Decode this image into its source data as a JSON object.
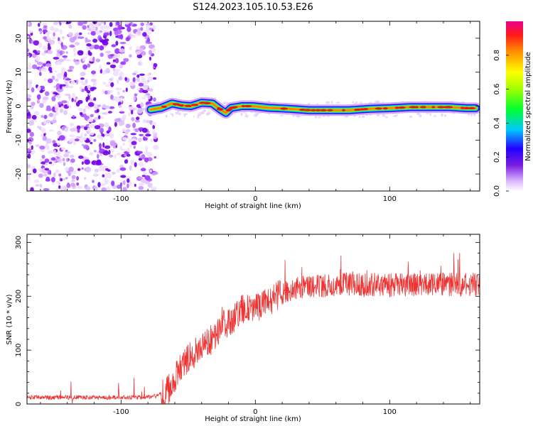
{
  "title": "S124.2023.105.10.53.E26",
  "chart_data": [
    {
      "type": "heatmap",
      "xlabel": "Height of straight line (km)",
      "ylabel": "Frequency (Hz)",
      "xlim": [
        -170,
        167
      ],
      "ylim": [
        -25,
        25
      ],
      "x_ticks": [
        -100,
        0,
        100
      ],
      "y_ticks": [
        -20,
        -10,
        0,
        10,
        20
      ],
      "colorbar": {
        "label": "Normalized spectral amplitude",
        "range": [
          0,
          1
        ],
        "ticks": [
          "0.0",
          "0.2",
          "0.4",
          "0.6",
          "0.8"
        ]
      },
      "noise_region_x": [
        -170,
        -74
      ],
      "signal_track": [
        {
          "x": -78,
          "y": -1.0
        },
        {
          "x": -70,
          "y": -0.5
        },
        {
          "x": -62,
          "y": 0.8
        },
        {
          "x": -55,
          "y": 0.2
        },
        {
          "x": -48,
          "y": 0.0
        },
        {
          "x": -40,
          "y": 1.0
        },
        {
          "x": -32,
          "y": 0.8
        },
        {
          "x": -26,
          "y": -1.0
        },
        {
          "x": -22,
          "y": -2.0
        },
        {
          "x": -18,
          "y": -0.5
        },
        {
          "x": -10,
          "y": 0.0
        },
        {
          "x": -2,
          "y": 0.0
        },
        {
          "x": 10,
          "y": -0.5
        },
        {
          "x": 25,
          "y": -0.8
        },
        {
          "x": 40,
          "y": -1.2
        },
        {
          "x": 55,
          "y": -1.2
        },
        {
          "x": 70,
          "y": -1.2
        },
        {
          "x": 85,
          "y": -0.8
        },
        {
          "x": 100,
          "y": -0.6
        },
        {
          "x": 115,
          "y": -0.3
        },
        {
          "x": 130,
          "y": -0.3
        },
        {
          "x": 145,
          "y": -0.3
        },
        {
          "x": 157,
          "y": -0.6
        },
        {
          "x": 164,
          "y": -0.6
        }
      ]
    },
    {
      "type": "line",
      "xlabel": "Height of straight line (km)",
      "ylabel": "SNR (10 * v/v)",
      "xlim": [
        -170,
        167
      ],
      "ylim": [
        0,
        315
      ],
      "x_ticks": [
        -100,
        0,
        100
      ],
      "y_ticks": [
        0,
        100,
        200,
        300
      ],
      "series": [
        {
          "color": "#ee3333",
          "x": [
            -170,
            -150,
            -130,
            -110,
            -90,
            -75,
            -65,
            -60,
            -55,
            -50,
            -45,
            -40,
            -35,
            -30,
            -25,
            -20,
            -15,
            -10,
            -5,
            0,
            5,
            10,
            15,
            20,
            25,
            30,
            40,
            50,
            60,
            70,
            80,
            90,
            100,
            110,
            120,
            130,
            140,
            150,
            160,
            167
          ],
          "values": [
            12,
            12,
            12,
            12,
            12,
            14,
            25,
            50,
            70,
            85,
            95,
            105,
            115,
            125,
            145,
            150,
            160,
            175,
            175,
            180,
            185,
            190,
            200,
            205,
            210,
            215,
            218,
            220,
            222,
            222,
            220,
            222,
            220,
            222,
            222,
            222,
            222,
            222,
            222,
            222
          ]
        }
      ]
    }
  ]
}
